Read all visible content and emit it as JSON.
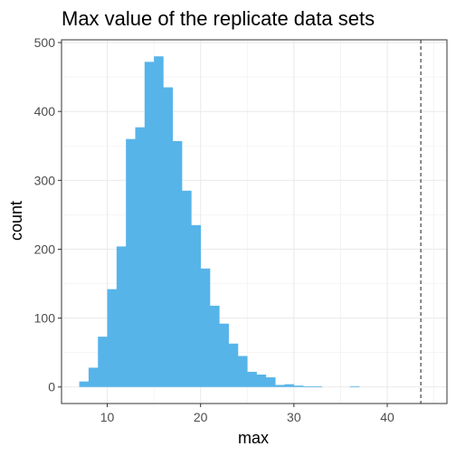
{
  "chart_data": {
    "type": "bar",
    "title": "Max value of the replicate data sets",
    "xlabel": "max",
    "ylabel": "count",
    "xlim": [
      5.1,
      46.4
    ],
    "ylim": [
      -24,
      504
    ],
    "x_ticks": [
      10,
      20,
      30,
      40
    ],
    "y_ticks": [
      0,
      100,
      200,
      300,
      400,
      500
    ],
    "x_tick_labels": [
      "10",
      "20",
      "30",
      "40"
    ],
    "y_tick_labels": [
      "0",
      "100",
      "200",
      "300",
      "400",
      "500"
    ],
    "grid": true,
    "bar_color": "#56B4E9",
    "reference_line": {
      "x": 43.6,
      "style": "dashed",
      "color": "#333333"
    },
    "bins": [
      {
        "x0": 7.0,
        "x1": 8.0,
        "count": 8
      },
      {
        "x0": 8.0,
        "x1": 9.0,
        "count": 28
      },
      {
        "x0": 9.0,
        "x1": 10.0,
        "count": 73
      },
      {
        "x0": 10.0,
        "x1": 11.0,
        "count": 142
      },
      {
        "x0": 11.0,
        "x1": 12.0,
        "count": 204
      },
      {
        "x0": 12.0,
        "x1": 13.0,
        "count": 360
      },
      {
        "x0": 13.0,
        "x1": 14.0,
        "count": 377
      },
      {
        "x0": 14.0,
        "x1": 15.0,
        "count": 472
      },
      {
        "x0": 15.0,
        "x1": 16.0,
        "count": 480
      },
      {
        "x0": 16.0,
        "x1": 17.0,
        "count": 435
      },
      {
        "x0": 17.0,
        "x1": 18.0,
        "count": 357
      },
      {
        "x0": 18.0,
        "x1": 19.0,
        "count": 285
      },
      {
        "x0": 19.0,
        "x1": 20.0,
        "count": 235
      },
      {
        "x0": 20.0,
        "x1": 21.0,
        "count": 172
      },
      {
        "x0": 21.0,
        "x1": 22.0,
        "count": 118
      },
      {
        "x0": 22.0,
        "x1": 23.0,
        "count": 92
      },
      {
        "x0": 23.0,
        "x1": 24.0,
        "count": 63
      },
      {
        "x0": 24.0,
        "x1": 25.0,
        "count": 45
      },
      {
        "x0": 25.0,
        "x1": 26.0,
        "count": 22
      },
      {
        "x0": 26.0,
        "x1": 27.0,
        "count": 18
      },
      {
        "x0": 27.0,
        "x1": 28.0,
        "count": 14
      },
      {
        "x0": 28.0,
        "x1": 29.0,
        "count": 3
      },
      {
        "x0": 29.0,
        "x1": 30.0,
        "count": 4
      },
      {
        "x0": 30.0,
        "x1": 31.0,
        "count": 2
      },
      {
        "x0": 31.0,
        "x1": 32.0,
        "count": 1
      },
      {
        "x0": 32.0,
        "x1": 33.0,
        "count": 1
      },
      {
        "x0": 33.0,
        "x1": 34.0,
        "count": 0
      },
      {
        "x0": 34.0,
        "x1": 35.0,
        "count": 0
      },
      {
        "x0": 35.0,
        "x1": 36.0,
        "count": 0
      },
      {
        "x0": 36.0,
        "x1": 37.0,
        "count": 1
      },
      {
        "x0": 37.0,
        "x1": 38.0,
        "count": 0
      }
    ]
  }
}
